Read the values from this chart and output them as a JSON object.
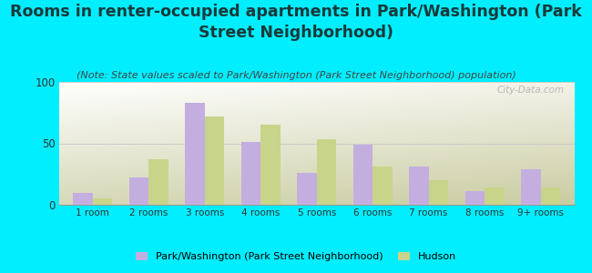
{
  "title": "Rooms in renter-occupied apartments in Park/Washington (Park\nStreet Neighborhood)",
  "subtitle": "(Note: State values scaled to Park/Washington (Park Street Neighborhood) population)",
  "categories": [
    "1 room",
    "2 rooms",
    "3 rooms",
    "4 rooms",
    "5 rooms",
    "6 rooms",
    "7 rooms",
    "8 rooms",
    "9+ rooms"
  ],
  "park_values": [
    10,
    22,
    83,
    51,
    26,
    49,
    31,
    11,
    29
  ],
  "hudson_values": [
    5,
    37,
    72,
    65,
    53,
    31,
    20,
    14,
    14
  ],
  "park_color": "#c4aee0",
  "hudson_color": "#c8d48a",
  "background_outer": "#00eeff",
  "ylim": [
    0,
    100
  ],
  "yticks": [
    0,
    50,
    100
  ],
  "legend_park": "Park/Washington (Park Street Neighborhood)",
  "legend_hudson": "Hudson",
  "bar_width": 0.35,
  "title_fontsize": 12.5,
  "subtitle_fontsize": 8,
  "watermark": "City-Data.com"
}
